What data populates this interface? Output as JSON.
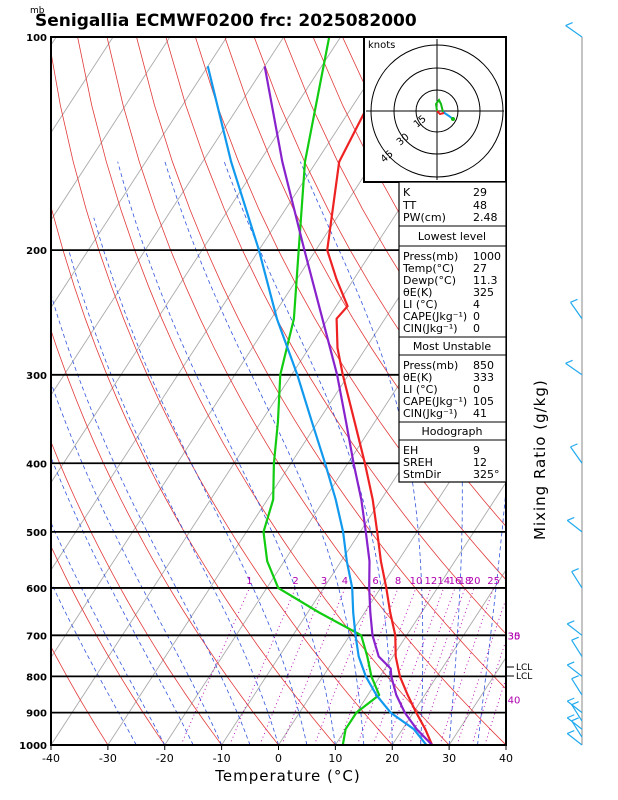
{
  "title": "Senigallia ECMWF0200  frc: 2025082000",
  "pressure_unit": "mb",
  "xlabel": "Temperature (°C)",
  "right_label": "Mixing Ratio (g/kg)",
  "hodograph": {
    "unit_label": "knots",
    "ring_labels": [
      "15",
      "30",
      "45"
    ]
  },
  "indices": [
    {
      "label": "K",
      "value": "29"
    },
    {
      "label": "TT",
      "value": "48"
    },
    {
      "label": "PW(cm)",
      "value": "2.48"
    }
  ],
  "lowest_level": {
    "header": "Lowest level",
    "rows": [
      {
        "label": "Press(mb)",
        "value": "1000"
      },
      {
        "label": "Temp(°C)",
        "value": "27"
      },
      {
        "label": "Dewp(°C)",
        "value": "11.3"
      },
      {
        "label": "θE(K)",
        "value": "325"
      },
      {
        "label": "LI (°C)",
        "value": "4"
      },
      {
        "label": "CAPE(Jkg⁻¹)",
        "value": "0"
      },
      {
        "label": "CIN(Jkg⁻¹)",
        "value": "0"
      }
    ]
  },
  "most_unstable": {
    "header": "Most Unstable",
    "rows": [
      {
        "label": "Press(mb)",
        "value": "850"
      },
      {
        "label": "θE(K)",
        "value": "333"
      },
      {
        "label": "LI (°C)",
        "value": "0"
      },
      {
        "label": "CAPE(Jkg⁻¹)",
        "value": "105"
      },
      {
        "label": "CIN(Jkg⁻¹)",
        "value": "41"
      }
    ]
  },
  "hodograph_panel": {
    "header": "Hodograph",
    "rows": [
      {
        "label": "EH",
        "value": "9"
      },
      {
        "label": "SREH",
        "value": "12"
      },
      {
        "label": "StmDir",
        "value": "325°"
      },
      {
        "label": "StmSpd(kt)",
        "value": "6"
      }
    ]
  },
  "level_labels": [
    "LCL",
    "LCL"
  ],
  "chart_data": {
    "type": "line",
    "title": "Senigallia ECMWF0200  frc: 2025082000",
    "xlabel": "Temperature (°C)",
    "ylabel": "mb",
    "xlim": [
      -40,
      40
    ],
    "ylim": [
      1000,
      100
    ],
    "y_scale": "log",
    "x_ticks": [
      -40,
      -30,
      -20,
      -10,
      0,
      10,
      20,
      30,
      40
    ],
    "p_ticks": [
      100,
      200,
      300,
      400,
      500,
      600,
      700,
      800,
      900,
      1000
    ],
    "grid": true,
    "mixing_ratio_labels": [
      "1",
      "2",
      "3",
      "4",
      "6",
      "8",
      "10",
      "12",
      "14",
      "16",
      "18",
      "20",
      "25",
      "30",
      "35",
      "40"
    ],
    "series": [
      {
        "key": "temperature",
        "color": "#ee2222",
        "points": [
          [
            1000,
            27
          ],
          [
            950,
            24
          ],
          [
            900,
            20.5
          ],
          [
            850,
            17
          ],
          [
            800,
            13.5
          ],
          [
            750,
            10.5
          ],
          [
            700,
            8
          ],
          [
            650,
            4.5
          ],
          [
            600,
            1
          ],
          [
            550,
            -3
          ],
          [
            500,
            -7
          ],
          [
            450,
            -11.5
          ],
          [
            400,
            -17
          ],
          [
            350,
            -23.5
          ],
          [
            300,
            -31
          ],
          [
            275,
            -35
          ],
          [
            250,
            -38.5
          ],
          [
            240,
            -38
          ],
          [
            220,
            -43
          ],
          [
            200,
            -48
          ],
          [
            150,
            -56
          ],
          [
            100,
            -59
          ]
        ]
      },
      {
        "key": "dewpoint",
        "color": "#11cc11",
        "points": [
          [
            1000,
            11.3
          ],
          [
            950,
            10
          ],
          [
            900,
            10
          ],
          [
            850,
            12
          ],
          [
            800,
            8.5
          ],
          [
            750,
            5.5
          ],
          [
            700,
            2
          ],
          [
            650,
            -8
          ],
          [
            600,
            -18
          ],
          [
            550,
            -23
          ],
          [
            500,
            -27
          ],
          [
            450,
            -29
          ],
          [
            400,
            -33
          ],
          [
            350,
            -37
          ],
          [
            300,
            -42
          ],
          [
            250,
            -46
          ],
          [
            200,
            -53
          ],
          [
            150,
            -62
          ],
          [
            100,
            -72
          ]
        ]
      },
      {
        "key": "parcel_blue",
        "color": "#1199ee",
        "points": [
          [
            1000,
            26
          ],
          [
            950,
            22
          ],
          [
            900,
            16
          ],
          [
            850,
            11.5
          ],
          [
            800,
            7.5
          ],
          [
            750,
            4
          ],
          [
            700,
            1
          ],
          [
            650,
            -2
          ],
          [
            600,
            -5
          ],
          [
            550,
            -9
          ],
          [
            500,
            -13
          ],
          [
            450,
            -18
          ],
          [
            400,
            -24
          ],
          [
            350,
            -31
          ],
          [
            300,
            -39
          ],
          [
            250,
            -49
          ],
          [
            200,
            -60
          ],
          [
            150,
            -75
          ],
          [
            110,
            -90
          ]
        ]
      },
      {
        "key": "parcel_purple",
        "color": "#8822cc",
        "points": [
          [
            1000,
            27
          ],
          [
            950,
            22.5
          ],
          [
            900,
            18.5
          ],
          [
            850,
            15
          ],
          [
            800,
            12
          ],
          [
            780,
            11
          ],
          [
            750,
            7.5
          ],
          [
            700,
            4
          ],
          [
            650,
            1
          ],
          [
            600,
            -2
          ],
          [
            550,
            -5
          ],
          [
            500,
            -9
          ],
          [
            450,
            -13.5
          ],
          [
            400,
            -19
          ],
          [
            350,
            -25
          ],
          [
            300,
            -32
          ],
          [
            250,
            -41
          ],
          [
            200,
            -52
          ],
          [
            150,
            -66
          ],
          [
            110,
            -80
          ]
        ]
      }
    ]
  }
}
